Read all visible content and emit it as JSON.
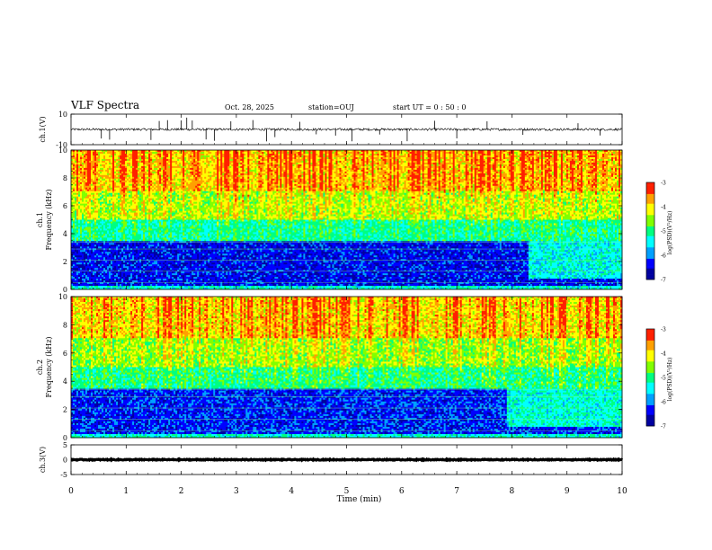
{
  "header": {
    "title": "VLF Spectra",
    "date": "Oct. 28, 2025",
    "station": "station=OUJ",
    "start": "start  UT =   0 : 50 : 0"
  },
  "colors": {
    "colormap": [
      "#0000a0",
      "#0000ff",
      "#00a0ff",
      "#00ffff",
      "#00ff80",
      "#80ff00",
      "#ffff00",
      "#ffa000",
      "#ff2000",
      "#ffffff"
    ]
  },
  "chart_data": [
    {
      "type": "line",
      "panel": "ch1-waveform",
      "ylabel": "ch.1(V)",
      "ylim": [
        -10,
        10
      ],
      "yticks": [
        "10",
        "-10"
      ],
      "xlim": [
        0,
        10
      ],
      "baseline": 0,
      "noise_amplitude": 1.5,
      "spikes": [
        0.55,
        0.7,
        1.45,
        1.6,
        1.75,
        2.0,
        2.1,
        2.2,
        2.45,
        2.6,
        2.9,
        3.3,
        3.55,
        3.7,
        4.15,
        4.45,
        4.8,
        5.1,
        5.6,
        6.1,
        6.6,
        7.0,
        7.55,
        8.2,
        9.2,
        9.6
      ]
    },
    {
      "type": "heatmap",
      "panel": "ch1-spectrogram",
      "ylabel": "ch.1",
      "ylabel2": "Frequency (kHz)",
      "ylim": [
        0,
        10
      ],
      "yticks": [
        "0",
        "2",
        "4",
        "6",
        "8",
        "10"
      ],
      "xlim": [
        0,
        10
      ],
      "colorbar": {
        "label": "log(PSD)(V²/Hz)",
        "ticks": [
          "-3",
          "-4",
          "-5",
          "-6",
          "-7"
        ],
        "range": [
          -7,
          -3
        ]
      },
      "bands": [
        {
          "fmin": 0.0,
          "fmax": 0.3,
          "level": -5.3
        },
        {
          "fmin": 0.3,
          "fmax": 3.4,
          "level": -6.4
        },
        {
          "fmin": 3.4,
          "fmax": 5.0,
          "level": -5.2
        },
        {
          "fmin": 5.0,
          "fmax": 7.0,
          "level": -4.5
        },
        {
          "fmin": 7.0,
          "fmax": 10.0,
          "level": -4.0
        }
      ],
      "late_change_min": 8.3
    },
    {
      "type": "heatmap",
      "panel": "ch2-spectrogram",
      "ylabel": "ch.2",
      "ylabel2": "Frequency (kHz)",
      "ylim": [
        0,
        10
      ],
      "yticks": [
        "0",
        "2",
        "4",
        "6",
        "8",
        "10"
      ],
      "xlim": [
        0,
        10
      ],
      "colorbar": {
        "label": "log(PSD)(V²/Hz)",
        "ticks": [
          "-3",
          "-4",
          "-5",
          "-6",
          "-7"
        ],
        "range": [
          -7,
          -3
        ]
      },
      "bands": [
        {
          "fmin": 0.0,
          "fmax": 0.3,
          "level": -5.3
        },
        {
          "fmin": 0.3,
          "fmax": 3.4,
          "level": -6.3
        },
        {
          "fmin": 3.4,
          "fmax": 5.0,
          "level": -5.1
        },
        {
          "fmin": 5.0,
          "fmax": 7.0,
          "level": -4.6
        },
        {
          "fmin": 7.0,
          "fmax": 10.0,
          "level": -4.1
        }
      ],
      "late_change_min": 7.9
    },
    {
      "type": "line",
      "panel": "ch3-waveform",
      "ylabel": "ch.3(V)",
      "ylim": [
        -5,
        5
      ],
      "yticks": [
        "5",
        "0",
        "-5"
      ],
      "xlim": [
        0,
        10
      ],
      "baseline": 0,
      "noise_amplitude": 0.3,
      "spikes": []
    }
  ],
  "xaxis": {
    "label": "Time (min)",
    "ticks": [
      "0",
      "1",
      "2",
      "3",
      "4",
      "5",
      "6",
      "7",
      "8",
      "9",
      "10"
    ]
  }
}
